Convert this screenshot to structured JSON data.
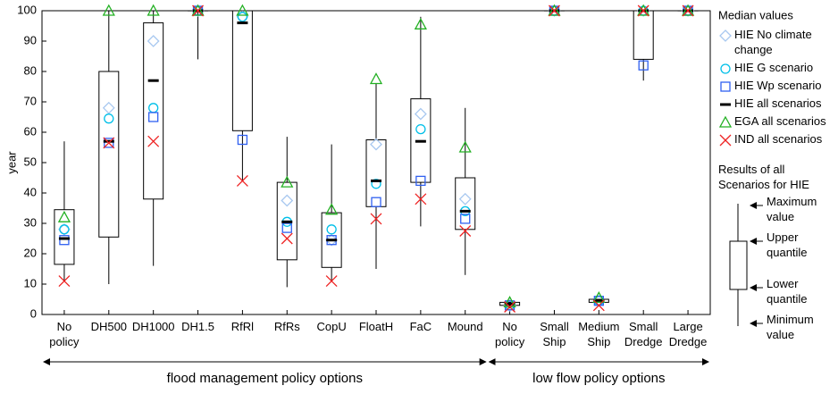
{
  "chart_data": {
    "type": "box",
    "y_label": "year",
    "ylim": [
      0,
      100
    ],
    "yticks": [
      0,
      10,
      20,
      30,
      40,
      50,
      60,
      70,
      80,
      90,
      100
    ],
    "categories": [
      "No policy",
      "DH500",
      "DH1000",
      "DH1.5",
      "RfRl",
      "RfRs",
      "CopU",
      "FloatH",
      "FaC",
      "Mound",
      "No policy",
      "Small Ship",
      "Medium Ship",
      "Small Dredge",
      "Large Dredge"
    ],
    "boxes": [
      {
        "min": 11,
        "q1": 16.5,
        "q3": 34.5,
        "max": 57
      },
      {
        "min": 10,
        "q1": 25.5,
        "q3": 80,
        "max": 100
      },
      {
        "min": 16,
        "q1": 38,
        "q3": 96,
        "max": 100
      },
      {
        "min": 84,
        "q1": 100,
        "q3": 100,
        "max": 100
      },
      {
        "min": 44,
        "q1": 60.5,
        "q3": 100,
        "max": 100
      },
      {
        "min": 9,
        "q1": 18,
        "q3": 43.5,
        "max": 58.5
      },
      {
        "min": 11,
        "q1": 15.5,
        "q3": 33.5,
        "max": 56
      },
      {
        "min": 15,
        "q1": 35.5,
        "q3": 57.5,
        "max": 76
      },
      {
        "min": 29,
        "q1": 43.5,
        "q3": 71,
        "max": 98
      },
      {
        "min": 13,
        "q1": 28,
        "q3": 45,
        "max": 68
      },
      {
        "min": 2,
        "q1": 3,
        "q3": 4,
        "max": 4
      },
      {
        "min": 100,
        "q1": 100,
        "q3": 100,
        "max": 100
      },
      {
        "min": 4,
        "q1": 4,
        "q3": 5,
        "max": 5
      },
      {
        "min": 77,
        "q1": 84,
        "q3": 100,
        "max": 100
      },
      {
        "min": 100,
        "q1": 100,
        "q3": 100,
        "max": 100
      }
    ],
    "legend_title": "Median values",
    "series": [
      {
        "name": "HIE No climate change",
        "marker": "diamond",
        "color": "#a8c8f0",
        "values": [
          28,
          68,
          90,
          100,
          98,
          37.5,
          24.5,
          56,
          66,
          38,
          3,
          100,
          4.5,
          100,
          100
        ]
      },
      {
        "name": "HIE G scenario",
        "marker": "circle",
        "color": "#00bfe8",
        "values": [
          28,
          64.5,
          68,
          100,
          98,
          30.5,
          28,
          43,
          61,
          34,
          3,
          100,
          4.5,
          100,
          100
        ]
      },
      {
        "name": "HIE Wp scenario",
        "marker": "square",
        "color": "#3060f0",
        "values": [
          24.5,
          56.5,
          65,
          100,
          57.5,
          28.5,
          24.5,
          37,
          44,
          31.5,
          3,
          100,
          4.5,
          82,
          100
        ]
      },
      {
        "name": "HIE all scenarios",
        "marker": "dash",
        "color": "#000000",
        "values": [
          25,
          57,
          77,
          100,
          96,
          30.5,
          24.5,
          44,
          57,
          34,
          3.5,
          100,
          4.5,
          100,
          100
        ]
      },
      {
        "name": "EGA all scenarios",
        "marker": "triangle",
        "color": "#22b022",
        "values": [
          32,
          100,
          100,
          100,
          100,
          43.5,
          34.5,
          77.5,
          95.5,
          55,
          4,
          100,
          5.5,
          100,
          100
        ]
      },
      {
        "name": "IND all scenarios",
        "marker": "x",
        "color": "#ee2222",
        "values": [
          11,
          56.5,
          57,
          100,
          44,
          25,
          11,
          31.5,
          38,
          27.5,
          2.5,
          100,
          3,
          100,
          100
        ]
      }
    ],
    "groups": [
      {
        "label": "flood management policy options",
        "from": 0,
        "to": 9
      },
      {
        "label": "low flow policy options",
        "from": 10,
        "to": 14
      }
    ],
    "box_legend": {
      "title": "Results of all Scenarios for HIE",
      "max": "Maximum value",
      "upper": "Upper quantile",
      "lower": "Lower quantile",
      "min": "Minimum value"
    }
  }
}
